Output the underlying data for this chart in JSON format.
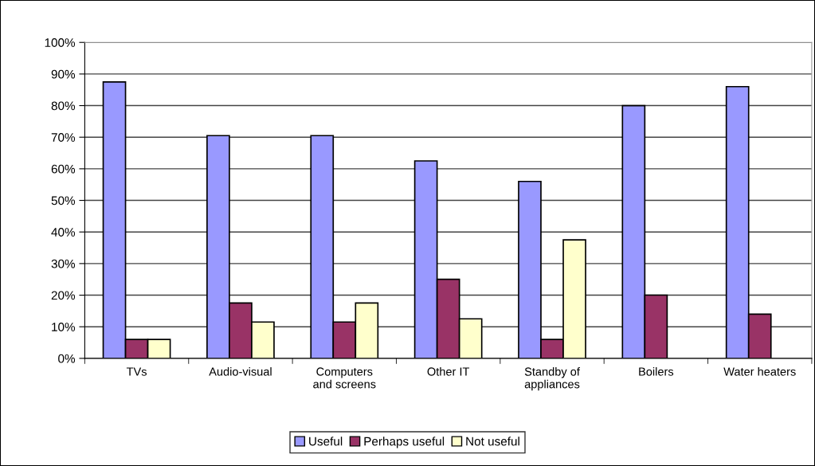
{
  "chart_data": {
    "type": "bar",
    "categories": [
      "TVs",
      "Audio-visual",
      "Computers\nand screens",
      "Other IT",
      "Standby of\nappliances",
      "Boilers",
      "Water heaters"
    ],
    "series": [
      {
        "name": "Useful",
        "color": "#9999ff",
        "values": [
          87.5,
          70.5,
          70.5,
          62.5,
          56,
          80,
          86
        ]
      },
      {
        "name": "Perhaps useful",
        "color": "#993366",
        "values": [
          6,
          17.5,
          11.5,
          25,
          6,
          20,
          14
        ]
      },
      {
        "name": "Not useful",
        "color": "#ffffcc",
        "values": [
          6,
          11.5,
          17.5,
          12.5,
          37.5,
          null,
          null
        ]
      }
    ],
    "ylim": [
      0,
      100
    ],
    "yticks": [
      {
        "value": 0,
        "label": "0%"
      },
      {
        "value": 10,
        "label": "10%"
      },
      {
        "value": 20,
        "label": "20%"
      },
      {
        "value": 30,
        "label": "30%"
      },
      {
        "value": 40,
        "label": "40%"
      },
      {
        "value": 50,
        "label": "50%"
      },
      {
        "value": 60,
        "label": "60%"
      },
      {
        "value": 70,
        "label": "70%"
      },
      {
        "value": 80,
        "label": "80%"
      },
      {
        "value": 90,
        "label": "90%"
      },
      {
        "value": 100,
        "label": "100%"
      }
    ],
    "grid": "y",
    "legend": "bottom"
  }
}
